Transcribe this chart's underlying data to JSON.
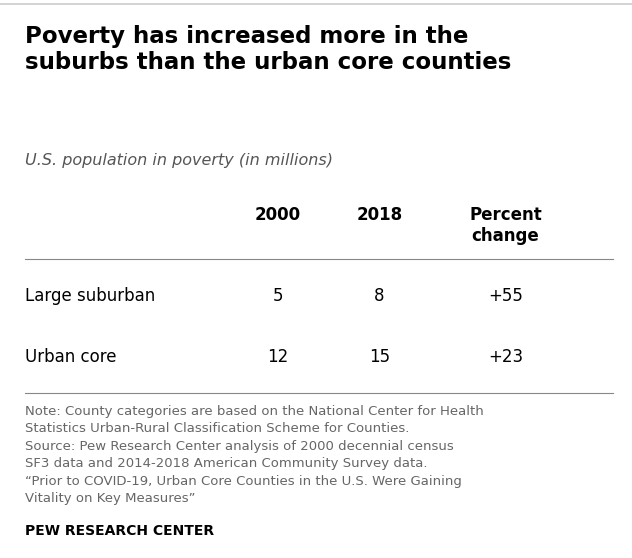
{
  "title": "Poverty has increased more in the\nsuburbs than the urban core counties",
  "subtitle": "U.S. population in poverty (in millions)",
  "col_headers": [
    "2000",
    "2018",
    "Percent\nchange"
  ],
  "row_labels": [
    "Large suburban",
    "Urban core"
  ],
  "values": [
    [
      "5",
      "8",
      "+55"
    ],
    [
      "12",
      "15",
      "+23"
    ]
  ],
  "note_text": "Note: County categories are based on the National Center for Health\nStatistics Urban-Rural Classification Scheme for Counties.\nSource: Pew Research Center analysis of 2000 decennial census\nSF3 data and 2014-2018 American Community Survey data.\n“Prior to COVID-19, Urban Core Counties in the U.S. Were Gaining\nVitality on Key Measures”",
  "footer": "PEW RESEARCH CENTER",
  "bg_color": "#ffffff",
  "title_color": "#000000",
  "subtitle_color": "#555555",
  "note_color": "#666666",
  "footer_color": "#000000",
  "table_text_color": "#000000",
  "title_fontsize": 16.5,
  "subtitle_fontsize": 11.5,
  "col_header_fontsize": 12,
  "row_label_fontsize": 12,
  "value_fontsize": 12,
  "note_fontsize": 9.5,
  "footer_fontsize": 10
}
